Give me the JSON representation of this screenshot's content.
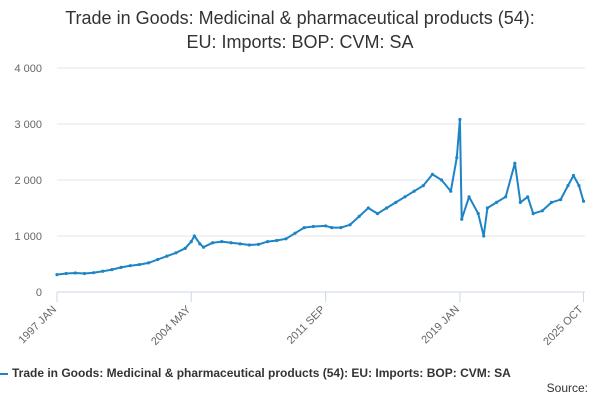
{
  "title": {
    "line1": "Trade in Goods: Medicinal & pharmaceutical products (54):",
    "line2": "EU: Imports: BOP: CVM: SA"
  },
  "legend": {
    "label": "Trade in Goods: Medicinal & pharmaceutical products (54): EU: Imports: BOP: CVM: SA"
  },
  "source": {
    "label": "Source:"
  },
  "colors": {
    "series": "#1d84c6",
    "grid": "#e6e6e6",
    "axis": "#ccd6eb",
    "text": "#666666"
  },
  "chart_data": {
    "type": "line",
    "title": "Trade in Goods: Medicinal & pharmaceutical products (54): EU: Imports: BOP: CVM: SA",
    "xlabel": "",
    "ylabel": "",
    "ylim": [
      0,
      4000
    ],
    "yticks": [
      0,
      1000,
      2000,
      3000,
      4000
    ],
    "ytick_labels": [
      "0",
      "1 000",
      "2 000",
      "3 000",
      "4 000"
    ],
    "xlim": [
      1997.0,
      2025.83
    ],
    "xticks": [
      {
        "value": 1997.0,
        "label": "1997 JAN"
      },
      {
        "value": 2004.33,
        "label": "2004 MAY"
      },
      {
        "value": 2011.67,
        "label": "2011 SEP"
      },
      {
        "value": 2019.0,
        "label": "2019 JAN"
      },
      {
        "value": 2025.75,
        "label": "2025 OCT"
      }
    ],
    "grid": true,
    "series": [
      {
        "name": "Trade in Goods: Medicinal & pharmaceutical products (54): EU: Imports: BOP: CVM: SA",
        "points": [
          [
            1997.0,
            310
          ],
          [
            1997.5,
            330
          ],
          [
            1998.0,
            340
          ],
          [
            1998.5,
            330
          ],
          [
            1999.0,
            345
          ],
          [
            1999.5,
            370
          ],
          [
            2000.0,
            400
          ],
          [
            2000.5,
            440
          ],
          [
            2001.0,
            470
          ],
          [
            2001.5,
            490
          ],
          [
            2002.0,
            520
          ],
          [
            2002.5,
            580
          ],
          [
            2003.0,
            640
          ],
          [
            2003.5,
            700
          ],
          [
            2004.0,
            780
          ],
          [
            2004.33,
            900
          ],
          [
            2004.5,
            1000
          ],
          [
            2004.8,
            860
          ],
          [
            2005.0,
            800
          ],
          [
            2005.5,
            880
          ],
          [
            2006.0,
            900
          ],
          [
            2006.5,
            880
          ],
          [
            2007.0,
            860
          ],
          [
            2007.5,
            840
          ],
          [
            2008.0,
            850
          ],
          [
            2008.5,
            900
          ],
          [
            2009.0,
            920
          ],
          [
            2009.5,
            950
          ],
          [
            2010.0,
            1050
          ],
          [
            2010.5,
            1150
          ],
          [
            2011.0,
            1170
          ],
          [
            2011.67,
            1180
          ],
          [
            2012.0,
            1150
          ],
          [
            2012.5,
            1150
          ],
          [
            2013.0,
            1200
          ],
          [
            2013.5,
            1350
          ],
          [
            2014.0,
            1500
          ],
          [
            2014.5,
            1400
          ],
          [
            2015.0,
            1500
          ],
          [
            2015.5,
            1600
          ],
          [
            2016.0,
            1700
          ],
          [
            2016.5,
            1800
          ],
          [
            2017.0,
            1900
          ],
          [
            2017.5,
            2100
          ],
          [
            2018.0,
            2000
          ],
          [
            2018.5,
            1800
          ],
          [
            2018.83,
            2400
          ],
          [
            2019.0,
            3080
          ],
          [
            2019.1,
            1300
          ],
          [
            2019.5,
            1700
          ],
          [
            2020.0,
            1400
          ],
          [
            2020.3,
            1000
          ],
          [
            2020.5,
            1500
          ],
          [
            2021.0,
            1600
          ],
          [
            2021.5,
            1700
          ],
          [
            2022.0,
            2300
          ],
          [
            2022.3,
            1600
          ],
          [
            2022.7,
            1700
          ],
          [
            2023.0,
            1400
          ],
          [
            2023.5,
            1450
          ],
          [
            2024.0,
            1600
          ],
          [
            2024.5,
            1650
          ],
          [
            2024.9,
            1900
          ],
          [
            2025.2,
            2080
          ],
          [
            2025.5,
            1900
          ],
          [
            2025.75,
            1620
          ]
        ]
      }
    ]
  }
}
